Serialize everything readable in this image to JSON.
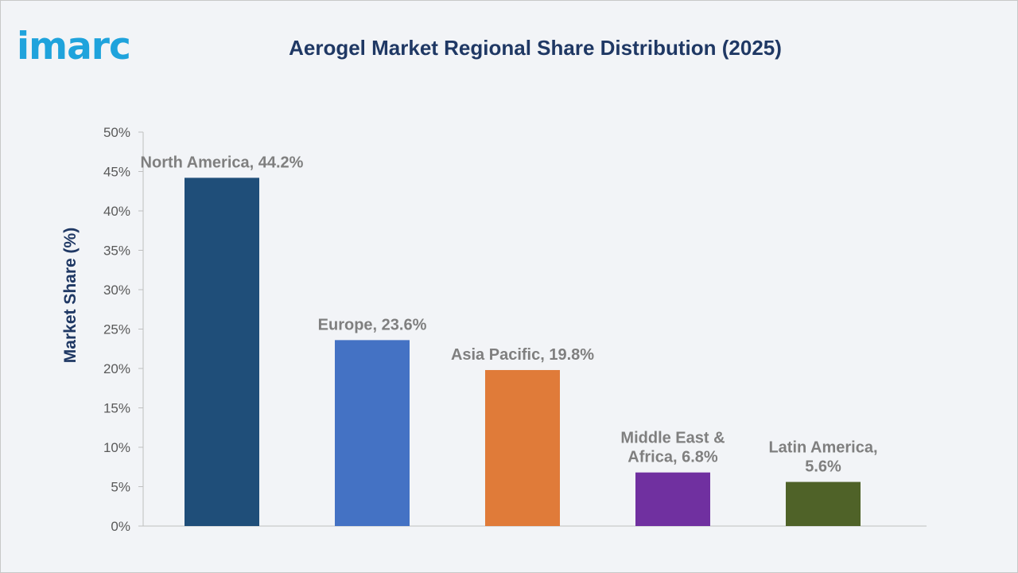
{
  "brand": {
    "logo_text": "imarc",
    "color": "#1fa3dc"
  },
  "chart_data": {
    "type": "bar",
    "title": "Aerogel Market Regional Share Distribution (2025)",
    "xlabel": "",
    "ylabel": "Market Share (%)",
    "ylim": [
      0,
      50
    ],
    "yticks": [
      "0%",
      "5%",
      "10%",
      "15%",
      "20%",
      "25%",
      "30%",
      "35%",
      "40%",
      "45%",
      "50%"
    ],
    "ytick_values": [
      0,
      5,
      10,
      15,
      20,
      25,
      30,
      35,
      40,
      45,
      50
    ],
    "categories": [
      "North America",
      "Europe",
      "Asia Pacific",
      "Middle East & Africa",
      "Latin America"
    ],
    "values": [
      44.2,
      23.6,
      19.8,
      6.8,
      5.6
    ],
    "data_labels": [
      [
        "North America, 44.2%"
      ],
      [
        "Europe, 23.6%"
      ],
      [
        "Asia Pacific, 19.8%"
      ],
      [
        "Middle East &",
        "Africa, 6.8%"
      ],
      [
        "Latin America,",
        "5.6%"
      ]
    ],
    "colors": [
      "#1f4e79",
      "#4472c4",
      "#e07b39",
      "#7030a0",
      "#4f6228"
    ],
    "grid": false,
    "legend": "none"
  }
}
